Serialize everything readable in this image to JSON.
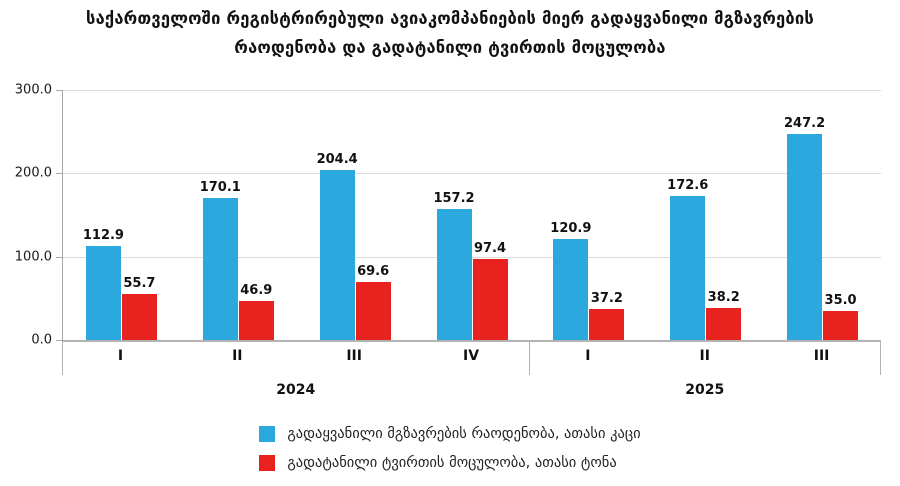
{
  "title": {
    "line1": "საქართველოში რეგისტრირებული ავიაკომპანიების მიერ გადაყვანილი მგზავრების",
    "line2": "რაოდენობა და გადატანილი ტვირთის მოცულობა"
  },
  "chart_data": {
    "type": "bar",
    "title": "საქართველოში რეგისტრირებული ავიაკომპანიების მიერ გადაყვანილი მგზავრების რაოდენობა და გადატანილი ტვირთის მოცულობა",
    "categories": [
      "I",
      "II",
      "III",
      "IV",
      "I",
      "II",
      "III"
    ],
    "year_groups": [
      {
        "label": "2024",
        "quarters": 4
      },
      {
        "label": "2025",
        "quarters": 3
      }
    ],
    "series": [
      {
        "name": "გადაყვანილი მგზავრების რაოდენობა, ათასი კაცი",
        "color": "#2BA9DF",
        "values": [
          112.9,
          170.1,
          204.4,
          157.2,
          120.9,
          172.6,
          247.2
        ]
      },
      {
        "name": "გადატანილი ტვირთის მოცულობა, ათასი ტონა",
        "color": "#E8231F",
        "values": [
          55.7,
          46.9,
          69.6,
          97.4,
          37.2,
          38.2,
          35.0
        ]
      }
    ],
    "y_axis": {
      "min": 0,
      "max": 300,
      "interval": 100,
      "tick_labels": [
        "300.0",
        "200.0",
        "100.0",
        "0.0"
      ]
    },
    "grid": true,
    "legend_position": "bottom",
    "value_label_decimals": 1
  }
}
